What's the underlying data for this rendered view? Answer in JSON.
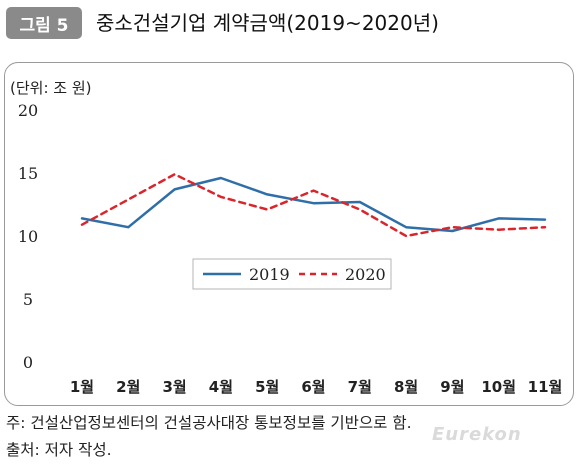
{
  "figure": {
    "badge": "그림 5",
    "title": "중소건설기업 계약금액(2019~2020년)",
    "unit_label": "(단위: 조 원)"
  },
  "notes": {
    "source_note": "주: 건설산업정보센터의 건설공사대장 통보정보를 기반으로 함.",
    "author_note": "출처: 저자 작성."
  },
  "watermark": "Eurekon",
  "chart_data": {
    "type": "line",
    "categories": [
      "1월",
      "2월",
      "3월",
      "4월",
      "5월",
      "6월",
      "7월",
      "8월",
      "9월",
      "10월",
      "11월"
    ],
    "series": [
      {
        "name": "2019",
        "color": "#2f6fa8",
        "style": "solid",
        "values": [
          11.4,
          10.7,
          13.7,
          14.6,
          13.3,
          12.6,
          12.7,
          10.7,
          10.4,
          11.4,
          11.3
        ]
      },
      {
        "name": "2020",
        "color": "#d9262c",
        "style": "dashed",
        "values": [
          10.9,
          12.9,
          14.9,
          13.1,
          12.1,
          13.6,
          12.1,
          10.0,
          10.7,
          10.5,
          10.7
        ]
      }
    ],
    "yticks": [
      "0",
      "5",
      "10",
      "15",
      "20"
    ],
    "ylim": [
      0,
      20
    ],
    "grid": false,
    "legend": "center"
  }
}
